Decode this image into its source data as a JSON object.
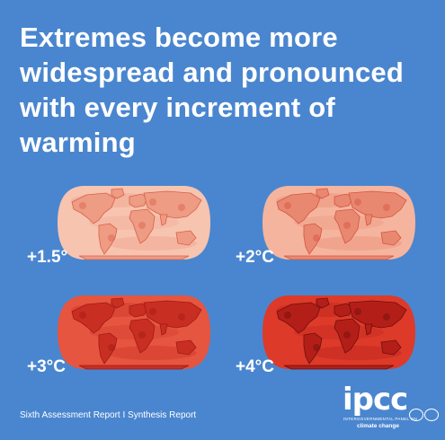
{
  "title_lines": [
    "Extremes become more",
    "widespread and pronounced",
    "with every increment of",
    "warming"
  ],
  "maps": [
    {
      "label": "+1.5°",
      "tone": "#f7c4b0",
      "shade": "#ee9c84",
      "dark": "#d9604a"
    },
    {
      "label": "+2°C",
      "tone": "#f5b49e",
      "shade": "#e98870",
      "dark": "#d55540"
    },
    {
      "label": "+3°C",
      "tone": "#e6553f",
      "shade": "#c92e22",
      "dark": "#9f1b14"
    },
    {
      "label": "+4°C",
      "tone": "#dd3a2a",
      "shade": "#b31f18",
      "dark": "#6f0e0b"
    }
  ],
  "footer": "Sixth Assessment Report I Synthesis Report",
  "logo": {
    "word": "ipcc",
    "line1": "INTERGOVERNMENTAL PANEL ON",
    "line2": "climate change"
  }
}
